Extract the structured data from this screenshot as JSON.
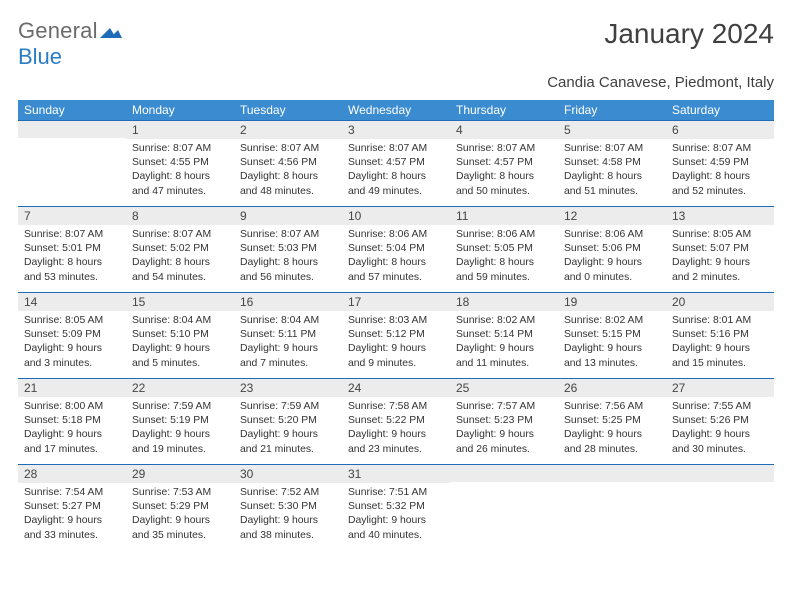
{
  "logo": {
    "gen": "General",
    "blue": "Blue"
  },
  "title": "January 2024",
  "location": "Candia Canavese, Piedmont, Italy",
  "colors": {
    "header_bg": "#3b8bd0",
    "header_text": "#ffffff",
    "daynum_bg": "#ececec",
    "daynum_border": "#1e6bb8",
    "body_text": "#333333",
    "page_bg": "#ffffff"
  },
  "fonts": {
    "title_size": 28,
    "subtitle_size": 15,
    "header_size": 12,
    "daynum_size": 12,
    "body_size": 10.4
  },
  "weekdays": [
    "Sunday",
    "Monday",
    "Tuesday",
    "Wednesday",
    "Thursday",
    "Friday",
    "Saturday"
  ],
  "weeks": [
    [
      {
        "n": "",
        "sr": "",
        "ss": "",
        "d1": "",
        "d2": ""
      },
      {
        "n": "1",
        "sr": "Sunrise: 8:07 AM",
        "ss": "Sunset: 4:55 PM",
        "d1": "Daylight: 8 hours",
        "d2": "and 47 minutes."
      },
      {
        "n": "2",
        "sr": "Sunrise: 8:07 AM",
        "ss": "Sunset: 4:56 PM",
        "d1": "Daylight: 8 hours",
        "d2": "and 48 minutes."
      },
      {
        "n": "3",
        "sr": "Sunrise: 8:07 AM",
        "ss": "Sunset: 4:57 PM",
        "d1": "Daylight: 8 hours",
        "d2": "and 49 minutes."
      },
      {
        "n": "4",
        "sr": "Sunrise: 8:07 AM",
        "ss": "Sunset: 4:57 PM",
        "d1": "Daylight: 8 hours",
        "d2": "and 50 minutes."
      },
      {
        "n": "5",
        "sr": "Sunrise: 8:07 AM",
        "ss": "Sunset: 4:58 PM",
        "d1": "Daylight: 8 hours",
        "d2": "and 51 minutes."
      },
      {
        "n": "6",
        "sr": "Sunrise: 8:07 AM",
        "ss": "Sunset: 4:59 PM",
        "d1": "Daylight: 8 hours",
        "d2": "and 52 minutes."
      }
    ],
    [
      {
        "n": "7",
        "sr": "Sunrise: 8:07 AM",
        "ss": "Sunset: 5:01 PM",
        "d1": "Daylight: 8 hours",
        "d2": "and 53 minutes."
      },
      {
        "n": "8",
        "sr": "Sunrise: 8:07 AM",
        "ss": "Sunset: 5:02 PM",
        "d1": "Daylight: 8 hours",
        "d2": "and 54 minutes."
      },
      {
        "n": "9",
        "sr": "Sunrise: 8:07 AM",
        "ss": "Sunset: 5:03 PM",
        "d1": "Daylight: 8 hours",
        "d2": "and 56 minutes."
      },
      {
        "n": "10",
        "sr": "Sunrise: 8:06 AM",
        "ss": "Sunset: 5:04 PM",
        "d1": "Daylight: 8 hours",
        "d2": "and 57 minutes."
      },
      {
        "n": "11",
        "sr": "Sunrise: 8:06 AM",
        "ss": "Sunset: 5:05 PM",
        "d1": "Daylight: 8 hours",
        "d2": "and 59 minutes."
      },
      {
        "n": "12",
        "sr": "Sunrise: 8:06 AM",
        "ss": "Sunset: 5:06 PM",
        "d1": "Daylight: 9 hours",
        "d2": "and 0 minutes."
      },
      {
        "n": "13",
        "sr": "Sunrise: 8:05 AM",
        "ss": "Sunset: 5:07 PM",
        "d1": "Daylight: 9 hours",
        "d2": "and 2 minutes."
      }
    ],
    [
      {
        "n": "14",
        "sr": "Sunrise: 8:05 AM",
        "ss": "Sunset: 5:09 PM",
        "d1": "Daylight: 9 hours",
        "d2": "and 3 minutes."
      },
      {
        "n": "15",
        "sr": "Sunrise: 8:04 AM",
        "ss": "Sunset: 5:10 PM",
        "d1": "Daylight: 9 hours",
        "d2": "and 5 minutes."
      },
      {
        "n": "16",
        "sr": "Sunrise: 8:04 AM",
        "ss": "Sunset: 5:11 PM",
        "d1": "Daylight: 9 hours",
        "d2": "and 7 minutes."
      },
      {
        "n": "17",
        "sr": "Sunrise: 8:03 AM",
        "ss": "Sunset: 5:12 PM",
        "d1": "Daylight: 9 hours",
        "d2": "and 9 minutes."
      },
      {
        "n": "18",
        "sr": "Sunrise: 8:02 AM",
        "ss": "Sunset: 5:14 PM",
        "d1": "Daylight: 9 hours",
        "d2": "and 11 minutes."
      },
      {
        "n": "19",
        "sr": "Sunrise: 8:02 AM",
        "ss": "Sunset: 5:15 PM",
        "d1": "Daylight: 9 hours",
        "d2": "and 13 minutes."
      },
      {
        "n": "20",
        "sr": "Sunrise: 8:01 AM",
        "ss": "Sunset: 5:16 PM",
        "d1": "Daylight: 9 hours",
        "d2": "and 15 minutes."
      }
    ],
    [
      {
        "n": "21",
        "sr": "Sunrise: 8:00 AM",
        "ss": "Sunset: 5:18 PM",
        "d1": "Daylight: 9 hours",
        "d2": "and 17 minutes."
      },
      {
        "n": "22",
        "sr": "Sunrise: 7:59 AM",
        "ss": "Sunset: 5:19 PM",
        "d1": "Daylight: 9 hours",
        "d2": "and 19 minutes."
      },
      {
        "n": "23",
        "sr": "Sunrise: 7:59 AM",
        "ss": "Sunset: 5:20 PM",
        "d1": "Daylight: 9 hours",
        "d2": "and 21 minutes."
      },
      {
        "n": "24",
        "sr": "Sunrise: 7:58 AM",
        "ss": "Sunset: 5:22 PM",
        "d1": "Daylight: 9 hours",
        "d2": "and 23 minutes."
      },
      {
        "n": "25",
        "sr": "Sunrise: 7:57 AM",
        "ss": "Sunset: 5:23 PM",
        "d1": "Daylight: 9 hours",
        "d2": "and 26 minutes."
      },
      {
        "n": "26",
        "sr": "Sunrise: 7:56 AM",
        "ss": "Sunset: 5:25 PM",
        "d1": "Daylight: 9 hours",
        "d2": "and 28 minutes."
      },
      {
        "n": "27",
        "sr": "Sunrise: 7:55 AM",
        "ss": "Sunset: 5:26 PM",
        "d1": "Daylight: 9 hours",
        "d2": "and 30 minutes."
      }
    ],
    [
      {
        "n": "28",
        "sr": "Sunrise: 7:54 AM",
        "ss": "Sunset: 5:27 PM",
        "d1": "Daylight: 9 hours",
        "d2": "and 33 minutes."
      },
      {
        "n": "29",
        "sr": "Sunrise: 7:53 AM",
        "ss": "Sunset: 5:29 PM",
        "d1": "Daylight: 9 hours",
        "d2": "and 35 minutes."
      },
      {
        "n": "30",
        "sr": "Sunrise: 7:52 AM",
        "ss": "Sunset: 5:30 PM",
        "d1": "Daylight: 9 hours",
        "d2": "and 38 minutes."
      },
      {
        "n": "31",
        "sr": "Sunrise: 7:51 AM",
        "ss": "Sunset: 5:32 PM",
        "d1": "Daylight: 9 hours",
        "d2": "and 40 minutes."
      },
      {
        "n": "",
        "sr": "",
        "ss": "",
        "d1": "",
        "d2": ""
      },
      {
        "n": "",
        "sr": "",
        "ss": "",
        "d1": "",
        "d2": ""
      },
      {
        "n": "",
        "sr": "",
        "ss": "",
        "d1": "",
        "d2": ""
      }
    ]
  ]
}
